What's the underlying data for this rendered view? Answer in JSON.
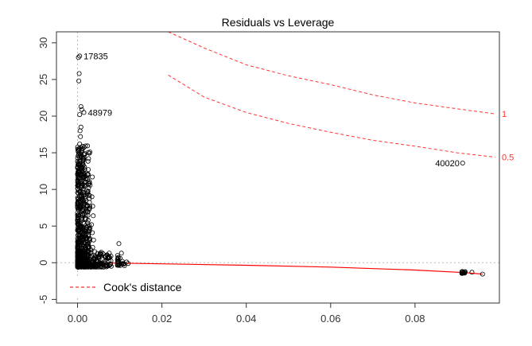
{
  "chart_data": {
    "type": "scatter",
    "title": "Residuals vs Leverage",
    "xlabel": "",
    "ylabel": "",
    "xlim": [
      -0.005,
      0.1
    ],
    "ylim": [
      -5.5,
      31.5
    ],
    "x_ticks": [
      0.0,
      0.02,
      0.04,
      0.06,
      0.08
    ],
    "x_tick_labels": [
      "0.00",
      "0.02",
      "0.04",
      "0.06",
      "0.08"
    ],
    "y_ticks": [
      -5,
      0,
      5,
      10,
      15,
      20,
      25,
      30
    ],
    "y_tick_labels": [
      "-5",
      "0",
      "5",
      "10",
      "15",
      "20",
      "25",
      "30"
    ],
    "grid": false,
    "reference_lines": {
      "x": 0,
      "y": 0,
      "style": "dotted",
      "color": "#bbbbbb"
    },
    "colors": {
      "points": "#000000",
      "smooth": "#ff0000",
      "cook": "#ff3333",
      "axis": "#333333"
    },
    "cooks_distance": {
      "legend_label": "Cook's distance",
      "legend_position": "bottom-left",
      "curves": [
        {
          "level_label": "1",
          "points": [
            [
              0.0215,
              31.5
            ],
            [
              0.03,
              29.3
            ],
            [
              0.04,
              27.0
            ],
            [
              0.05,
              25.5
            ],
            [
              0.06,
              24.3
            ],
            [
              0.07,
              22.9
            ],
            [
              0.08,
              21.8
            ],
            [
              0.09,
              21.0
            ],
            [
              0.099,
              20.3
            ]
          ]
        },
        {
          "level_label": "0.5",
          "points": [
            [
              0.0215,
              25.6
            ],
            [
              0.03,
              22.6
            ],
            [
              0.04,
              20.5
            ],
            [
              0.05,
              19.0
            ],
            [
              0.06,
              17.8
            ],
            [
              0.07,
              16.7
            ],
            [
              0.08,
              15.9
            ],
            [
              0.09,
              15.0
            ],
            [
              0.099,
              14.4
            ]
          ]
        }
      ]
    },
    "smooth_line": [
      [
        0.0,
        0.05
      ],
      [
        0.01,
        -0.05
      ],
      [
        0.02,
        -0.15
      ],
      [
        0.04,
        -0.35
      ],
      [
        0.06,
        -0.6
      ],
      [
        0.08,
        -1.0
      ],
      [
        0.092,
        -1.35
      ],
      [
        0.096,
        -1.55
      ]
    ],
    "labeled_points": [
      {
        "label": "17835",
        "x": 0.0005,
        "y": 28.2
      },
      {
        "label": "48979",
        "x": 0.0015,
        "y": 20.5
      },
      {
        "label": "40020",
        "x": 0.0915,
        "y": 13.6
      }
    ],
    "points": [
      [
        0.0003,
        24.8
      ],
      [
        0.0004,
        25.8
      ],
      [
        0.0005,
        28.2
      ],
      [
        0.0002,
        28.0
      ],
      [
        0.0008,
        21.3
      ],
      [
        0.001,
        20.9
      ],
      [
        0.0015,
        20.5
      ],
      [
        0.0005,
        20.2
      ],
      [
        0.0008,
        18.5
      ],
      [
        0.0006,
        18.0
      ],
      [
        0.0007,
        17.2
      ],
      [
        0.0005,
        16.2
      ],
      [
        0.0009,
        15.5
      ],
      [
        0.0012,
        14.2
      ],
      [
        0.0006,
        13.5
      ],
      [
        0.0011,
        12.8
      ],
      [
        0.0014,
        12.1
      ],
      [
        0.0007,
        11.4
      ],
      [
        0.0016,
        10.9
      ],
      [
        0.0009,
        10.2
      ],
      [
        0.0013,
        9.6
      ],
      [
        0.0019,
        9.0
      ],
      [
        0.0008,
        8.4
      ],
      [
        0.0015,
        7.8
      ],
      [
        0.0021,
        7.2
      ],
      [
        0.0011,
        6.6
      ],
      [
        0.0018,
        6.0
      ],
      [
        0.0024,
        5.4
      ],
      [
        0.0009,
        4.8
      ],
      [
        0.0016,
        4.2
      ],
      [
        0.0026,
        3.6
      ],
      [
        0.0012,
        3.0
      ],
      [
        0.0021,
        2.4
      ],
      [
        0.0031,
        1.8
      ],
      [
        0.0008,
        1.2
      ],
      [
        0.0017,
        0.6
      ],
      [
        0.0028,
        0.0
      ],
      [
        0.0036,
        -0.4
      ],
      [
        0.0044,
        -0.5
      ],
      [
        0.0052,
        -0.3
      ],
      [
        0.0062,
        -0.2
      ],
      [
        0.007,
        -0.3
      ],
      [
        0.0035,
        11.7
      ],
      [
        0.0034,
        9.0
      ],
      [
        0.0036,
        7.7
      ],
      [
        0.0037,
        6.4
      ],
      [
        0.0033,
        5.2
      ],
      [
        0.0035,
        4.1
      ],
      [
        0.0038,
        3.1
      ],
      [
        0.0036,
        2.1
      ],
      [
        0.0041,
        1.5
      ],
      [
        0.0045,
        0.8
      ],
      [
        0.0048,
        0.2
      ],
      [
        0.0025,
        5.8
      ],
      [
        0.0028,
        4.5
      ],
      [
        0.0022,
        3.4
      ],
      [
        0.0027,
        2.2
      ],
      [
        0.0098,
        2.6
      ],
      [
        0.0095,
        1.0
      ],
      [
        0.0101,
        0.6
      ],
      [
        0.0104,
        1.3
      ],
      [
        0.0106,
        0.2
      ],
      [
        0.0109,
        -0.1
      ],
      [
        0.0116,
        0.1
      ],
      [
        0.012,
        -0.1
      ],
      [
        0.0913,
        13.6
      ],
      [
        0.0912,
        -1.2
      ],
      [
        0.0914,
        -1.4
      ],
      [
        0.0916,
        -1.35
      ],
      [
        0.0918,
        -1.25
      ],
      [
        0.0935,
        -1.3
      ],
      [
        0.096,
        -1.55
      ]
    ],
    "dense_regions": [
      {
        "x_range": [
          0.0,
          0.003
        ],
        "y_range": [
          -0.6,
          16.0
        ],
        "count": 520
      },
      {
        "x_range": [
          0.0,
          0.008
        ],
        "y_range": [
          -0.6,
          1.5
        ],
        "count": 220
      },
      {
        "x_range": [
          0.0094,
          0.0112
        ],
        "y_range": [
          -0.4,
          0.9
        ],
        "count": 20
      },
      {
        "x_range": [
          0.0911,
          0.0919
        ],
        "y_range": [
          -1.45,
          -1.15
        ],
        "count": 15
      }
    ]
  }
}
